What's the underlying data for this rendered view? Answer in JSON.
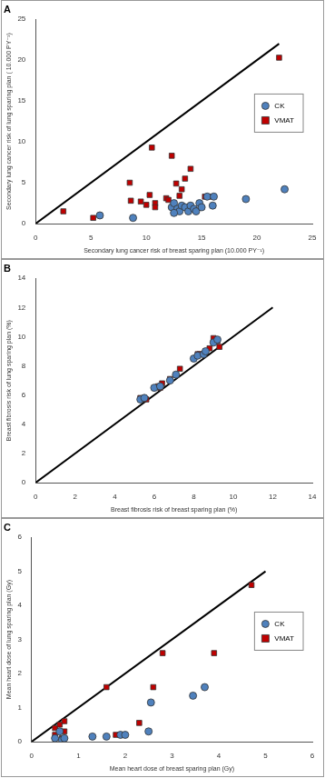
{
  "chart_data": [
    {
      "type": "scatter",
      "title": "A",
      "x_label": "Secondary lung cancer risk of breast sparing plan (10.000 PY⁻¹)",
      "y_label": "Secondary lung cancer risk of lung sparing plan ( 10.000 PY⁻¹)",
      "xlim": [
        0,
        25
      ],
      "ylim": [
        0,
        25
      ],
      "xticks": [
        0,
        5,
        10,
        15,
        20,
        25
      ],
      "yticks": [
        0,
        5,
        10,
        15,
        20,
        25
      ],
      "grid": false,
      "legend": "right",
      "series": [
        {
          "name": "CK",
          "color": "#4f81bd",
          "marker": "circle",
          "x": [
            5.8,
            8.8,
            12.3,
            12.5,
            12.8,
            13.0,
            13.2,
            13.5,
            13.8,
            14.0,
            14.3,
            14.5,
            14.8,
            15.0,
            15.5,
            16.0,
            16.1,
            19.0,
            22.5,
            12.5
          ],
          "values": [
            1.0,
            0.7,
            2.0,
            2.5,
            1.8,
            1.5,
            2.2,
            2.0,
            1.5,
            2.2,
            1.8,
            1.5,
            2.5,
            2.0,
            3.3,
            2.2,
            3.3,
            3.0,
            4.2,
            1.3
          ]
        },
        {
          "name": "VMAT",
          "color": "#c00000",
          "marker": "square",
          "x": [
            2.5,
            5.2,
            8.5,
            8.6,
            9.5,
            10.0,
            10.3,
            10.5,
            10.8,
            10.8,
            11.8,
            12.0,
            12.3,
            12.7,
            13.0,
            13.2,
            13.5,
            14.0,
            15.3,
            15.7,
            22.0
          ],
          "values": [
            1.5,
            0.7,
            5.0,
            2.8,
            2.7,
            2.3,
            3.5,
            9.3,
            2.5,
            2.0,
            3.1,
            2.9,
            8.3,
            4.9,
            3.4,
            4.2,
            5.5,
            6.7,
            3.3,
            3.3,
            20.3
          ]
        }
      ],
      "lines": [
        {
          "color": "#000000",
          "line_style": "solid",
          "x": [
            0,
            22
          ],
          "values": [
            0,
            22
          ]
        }
      ]
    },
    {
      "type": "scatter",
      "title": "B",
      "x_label": "Breast fibrosis risk of breast sparing plan (%)",
      "y_label": "Breast fibrosis risk of lung sparing plan (%)",
      "xlim": [
        0,
        14
      ],
      "ylim": [
        0,
        14
      ],
      "xticks": [
        0,
        2,
        4,
        6,
        8,
        10,
        12,
        14
      ],
      "yticks": [
        0,
        2,
        4,
        6,
        8,
        10,
        12,
        14
      ],
      "grid": false,
      "series": [
        {
          "name": "CK",
          "color": "#4f81bd",
          "marker": "circle",
          "x": [
            5.3,
            5.5,
            6.0,
            6.3,
            6.8,
            7.1,
            8.0,
            8.2,
            8.5,
            9.0,
            9.2,
            8.6
          ],
          "values": [
            5.7,
            5.8,
            6.5,
            6.6,
            7.0,
            7.4,
            8.5,
            8.7,
            8.8,
            9.6,
            9.8,
            9.0
          ]
        },
        {
          "name": "VMAT",
          "color": "#c00000",
          "marker": "square",
          "x": [
            5.3,
            5.6,
            6.2,
            6.4,
            6.8,
            7.3,
            8.2,
            8.3,
            8.6,
            8.8,
            9.0,
            9.2,
            9.3,
            6.3
          ],
          "values": [
            5.8,
            5.7,
            6.6,
            6.8,
            7.1,
            7.8,
            8.8,
            8.8,
            9.0,
            9.2,
            9.9,
            9.7,
            9.3,
            6.5
          ]
        }
      ],
      "lines": [
        {
          "color": "#000000",
          "line_style": "solid",
          "x": [
            0,
            12
          ],
          "values": [
            0,
            12
          ]
        }
      ]
    },
    {
      "type": "scatter",
      "title": "C",
      "x_label": "Mean heart dose of breast sparing plan (Gy)",
      "y_label": "Mean heart dose of lung sparing plan (Gy)",
      "xlim": [
        0,
        6
      ],
      "ylim": [
        0,
        6
      ],
      "xticks": [
        0,
        1,
        2,
        3,
        4,
        5,
        6
      ],
      "yticks": [
        0,
        1,
        2,
        3,
        4,
        5,
        6
      ],
      "grid": false,
      "legend": "right",
      "series": [
        {
          "name": "CK",
          "color": "#4f81bd",
          "marker": "circle",
          "x": [
            0.5,
            0.6,
            0.65,
            0.7,
            1.3,
            1.6,
            1.9,
            2.0,
            2.5,
            2.55,
            3.45,
            3.7
          ],
          "values": [
            0.1,
            0.3,
            0.05,
            0.1,
            0.15,
            0.15,
            0.2,
            0.2,
            0.3,
            1.15,
            1.35,
            1.6
          ]
        },
        {
          "name": "VMAT",
          "color": "#c00000",
          "marker": "square",
          "x": [
            0.5,
            0.5,
            0.6,
            0.65,
            0.7,
            0.7,
            1.6,
            1.8,
            1.9,
            2.3,
            2.6,
            2.8,
            3.9,
            4.7
          ],
          "values": [
            0.2,
            0.4,
            0.5,
            0.1,
            0.6,
            0.3,
            1.6,
            0.2,
            0.2,
            0.55,
            1.6,
            2.6,
            2.6,
            4.6
          ]
        }
      ],
      "lines": [
        {
          "color": "#000000",
          "line_style": "solid",
          "x": [
            0,
            5
          ],
          "values": [
            0,
            5
          ]
        }
      ]
    }
  ]
}
